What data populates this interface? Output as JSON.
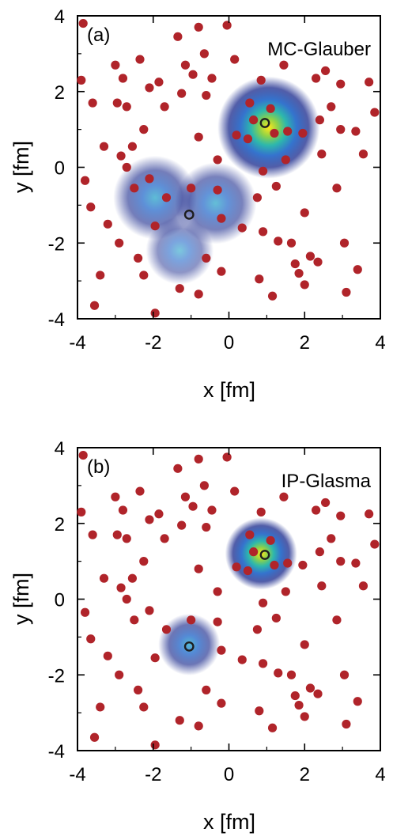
{
  "chart_data": [
    {
      "type": "scatter",
      "panel_label": "(a)",
      "title": "MC-Glauber",
      "xlabel": "x [fm]",
      "ylabel": "y [fm]",
      "xlim": [
        -4,
        4
      ],
      "ylim": [
        -4,
        4
      ],
      "xticks": [
        "-4",
        "-2",
        "0",
        "2",
        "4"
      ],
      "yticks": [
        "4",
        "2",
        "0",
        "-2",
        "-4"
      ],
      "grid": false,
      "colors": {
        "nucleon": "#b0242a",
        "nucleus_center": "#1e1e1e"
      },
      "nucleus_centers": [
        [
          0.95,
          1.17
        ],
        [
          -1.05,
          -1.25
        ]
      ],
      "density_blobs": [
        {
          "center": [
            1.05,
            1.05
          ],
          "peak": 1.0
        },
        {
          "center": [
            -1.95,
            -0.8
          ],
          "peak": 0.45
        },
        {
          "center": [
            -0.35,
            -0.95
          ],
          "peak": 0.4
        },
        {
          "center": [
            -1.3,
            -2.2
          ],
          "peak": 0.15
        }
      ],
      "nucleons": [
        [
          -3.85,
          3.8
        ],
        [
          -3.6,
          1.7
        ],
        [
          -3.8,
          -0.35
        ],
        [
          -3.65,
          -1.05
        ],
        [
          -3.4,
          -2.85
        ],
        [
          -3.55,
          -3.65
        ],
        [
          -3.3,
          0.55
        ],
        [
          -3.0,
          2.7
        ],
        [
          -2.8,
          2.35
        ],
        [
          -2.95,
          1.7
        ],
        [
          -2.7,
          1.6
        ],
        [
          -2.85,
          0.3
        ],
        [
          -2.7,
          0.0
        ],
        [
          -2.55,
          0.55
        ],
        [
          -2.5,
          -0.55
        ],
        [
          -2.9,
          -2.0
        ],
        [
          -2.35,
          2.85
        ],
        [
          -2.1,
          2.1
        ],
        [
          -2.25,
          1.0
        ],
        [
          -2.1,
          -0.3
        ],
        [
          -1.95,
          -1.55
        ],
        [
          -2.4,
          -2.4
        ],
        [
          -2.25,
          -2.85
        ],
        [
          -1.85,
          2.25
        ],
        [
          -1.7,
          1.6
        ],
        [
          -1.65,
          -0.8
        ],
        [
          -1.95,
          -3.85
        ],
        [
          -1.35,
          3.45
        ],
        [
          -1.15,
          2.7
        ],
        [
          -0.95,
          2.45
        ],
        [
          -1.25,
          1.95
        ],
        [
          -1.0,
          -0.55
        ],
        [
          -1.3,
          -3.2
        ],
        [
          -0.8,
          3.7
        ],
        [
          -0.6,
          1.9
        ],
        [
          -0.45,
          2.35
        ],
        [
          -0.3,
          -0.6
        ],
        [
          -0.2,
          -1.35
        ],
        [
          -0.6,
          -2.4
        ],
        [
          -0.8,
          -3.35
        ],
        [
          -0.2,
          -2.75
        ],
        [
          -0.05,
          3.75
        ],
        [
          0.15,
          2.85
        ],
        [
          0.2,
          0.85
        ],
        [
          0.35,
          -1.6
        ],
        [
          0.5,
          0.75
        ],
        [
          0.55,
          1.7
        ],
        [
          0.65,
          1.25
        ],
        [
          0.85,
          2.3
        ],
        [
          0.9,
          -0.1
        ],
        [
          0.9,
          -1.7
        ],
        [
          0.8,
          -2.95
        ],
        [
          1.1,
          1.55
        ],
        [
          1.2,
          0.9
        ],
        [
          1.25,
          -0.5
        ],
        [
          1.3,
          -1.95
        ],
        [
          1.45,
          2.7
        ],
        [
          1.55,
          0.95
        ],
        [
          1.5,
          0.2
        ],
        [
          1.65,
          -2.0
        ],
        [
          1.75,
          -2.55
        ],
        [
          1.85,
          -2.8
        ],
        [
          1.95,
          0.9
        ],
        [
          2.0,
          -1.2
        ],
        [
          2.15,
          -2.35
        ],
        [
          2.0,
          -3.1
        ],
        [
          2.4,
          1.25
        ],
        [
          2.45,
          0.35
        ],
        [
          2.55,
          2.55
        ],
        [
          2.7,
          1.6
        ],
        [
          2.95,
          2.2
        ],
        [
          2.95,
          1.0
        ],
        [
          2.85,
          -0.55
        ],
        [
          3.05,
          -2.0
        ],
        [
          3.1,
          -3.3
        ],
        [
          3.35,
          0.95
        ],
        [
          3.55,
          0.35
        ],
        [
          3.7,
          2.25
        ],
        [
          3.85,
          1.45
        ],
        [
          -0.65,
          3.0
        ],
        [
          1.15,
          -3.4
        ],
        [
          2.35,
          -2.5
        ],
        [
          -3.9,
          2.3
        ],
        [
          0.75,
          -0.8
        ],
        [
          2.3,
          2.35
        ],
        [
          -0.3,
          0.2
        ],
        [
          3.4,
          -2.7
        ],
        [
          -3.2,
          -1.5
        ],
        [
          -0.8,
          0.8
        ]
      ]
    },
    {
      "type": "scatter",
      "panel_label": "(b)",
      "title": "IP-Glasma",
      "xlabel": "x [fm]",
      "ylabel": "y [fm]",
      "xlim": [
        -4,
        4
      ],
      "ylim": [
        -4,
        4
      ],
      "xticks": [
        "-4",
        "-2",
        "0",
        "2",
        "4"
      ],
      "yticks": [
        "4",
        "2",
        "0",
        "-2",
        "-4"
      ],
      "grid": false,
      "colors": {
        "nucleon": "#b0242a",
        "nucleus_center": "#1e1e1e"
      },
      "nucleus_centers": [
        [
          0.95,
          1.17
        ],
        [
          -1.05,
          -1.25
        ]
      ],
      "density_blobs": [
        {
          "center": [
            0.85,
            1.2
          ],
          "peak": 1.0
        },
        {
          "center": [
            -1.05,
            -1.2
          ],
          "peak": 0.55
        }
      ],
      "nucleons": "same as panel (a)"
    }
  ]
}
